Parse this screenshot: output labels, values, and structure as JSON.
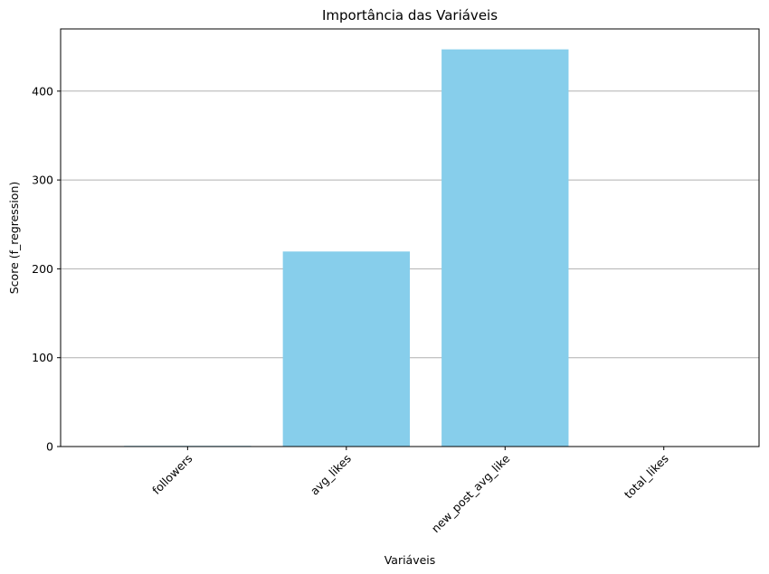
{
  "chart_data": {
    "type": "bar",
    "title": "Importância das Variáveis",
    "xlabel": "Variáveis",
    "ylabel": "Score (f_regression)",
    "categories": [
      "followers",
      "avg_likes",
      "new_post_avg_like",
      "total_likes"
    ],
    "values": [
      0.8,
      219.5,
      447,
      0.2
    ],
    "ylim": [
      0,
      470
    ],
    "yticks": [
      0,
      100,
      200,
      300,
      400
    ],
    "xtick_rotation": 45,
    "grid": "y-major",
    "bar_color": "#87ceeb",
    "grid_color": "#b0b0b0"
  }
}
